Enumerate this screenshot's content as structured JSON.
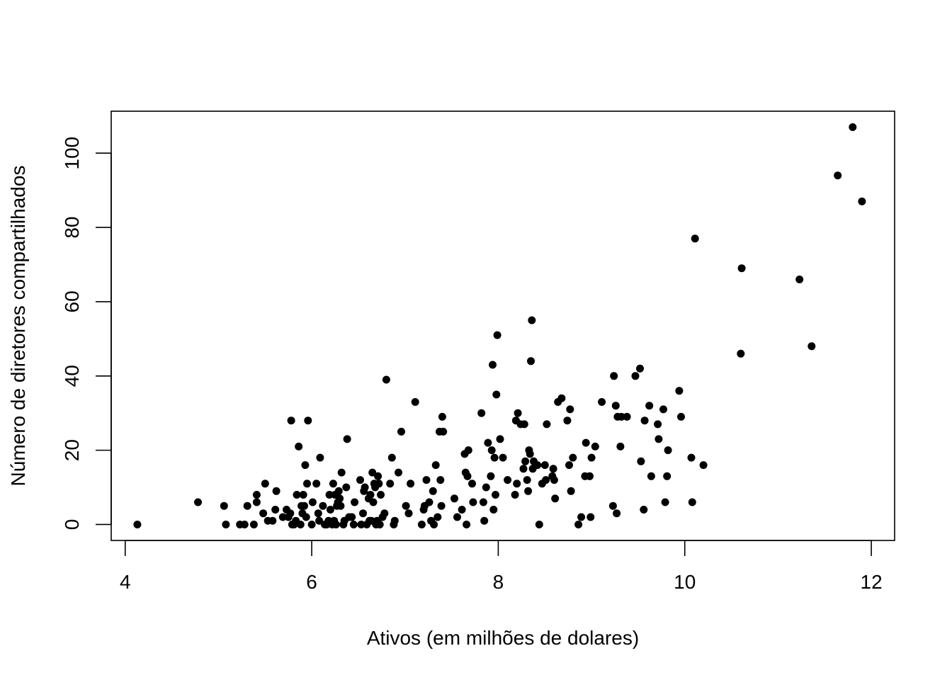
{
  "chart_data": {
    "type": "scatter",
    "title": "",
    "xlabel": "Ativos (em milhões de dolares)",
    "ylabel": "Número de diretores compartilhados",
    "xlim": [
      3.85,
      12.25
    ],
    "ylim": [
      -4.3,
      111.3
    ],
    "x_ticks": [
      4,
      6,
      8,
      10,
      12
    ],
    "y_ticks": [
      0,
      20,
      40,
      60,
      80,
      100
    ],
    "grid": false,
    "legend": "none",
    "point_color": "#000000",
    "points": [
      [
        4.13,
        0
      ],
      [
        4.78,
        6
      ],
      [
        5.06,
        5
      ],
      [
        5.08,
        0
      ],
      [
        5.23,
        0
      ],
      [
        5.28,
        0
      ],
      [
        5.31,
        5
      ],
      [
        5.38,
        0
      ],
      [
        5.41,
        6
      ],
      [
        5.41,
        8
      ],
      [
        5.48,
        3
      ],
      [
        5.5,
        11
      ],
      [
        5.53,
        1
      ],
      [
        5.58,
        1
      ],
      [
        5.61,
        4
      ],
      [
        5.62,
        9
      ],
      [
        5.69,
        2
      ],
      [
        5.73,
        4
      ],
      [
        5.75,
        2
      ],
      [
        5.77,
        3
      ],
      [
        5.78,
        28
      ],
      [
        5.79,
        0
      ],
      [
        5.81,
        0
      ],
      [
        5.83,
        1
      ],
      [
        5.84,
        8
      ],
      [
        5.86,
        21
      ],
      [
        5.88,
        0
      ],
      [
        5.89,
        5
      ],
      [
        5.9,
        3
      ],
      [
        5.91,
        8
      ],
      [
        5.92,
        5
      ],
      [
        5.93,
        16
      ],
      [
        5.94,
        2
      ],
      [
        5.95,
        11
      ],
      [
        5.96,
        28
      ],
      [
        6.0,
        0
      ],
      [
        6.01,
        6
      ],
      [
        6.05,
        11
      ],
      [
        6.07,
        3
      ],
      [
        6.08,
        1
      ],
      [
        6.09,
        18
      ],
      [
        6.12,
        5
      ],
      [
        6.14,
        0
      ],
      [
        6.16,
        0
      ],
      [
        6.18,
        1
      ],
      [
        6.19,
        8
      ],
      [
        6.2,
        4
      ],
      [
        6.22,
        0
      ],
      [
        6.23,
        11
      ],
      [
        6.24,
        1
      ],
      [
        6.25,
        8
      ],
      [
        6.26,
        0
      ],
      [
        6.27,
        5
      ],
      [
        6.28,
        6
      ],
      [
        6.29,
        9
      ],
      [
        6.3,
        7
      ],
      [
        6.31,
        5
      ],
      [
        6.32,
        14
      ],
      [
        6.34,
        0
      ],
      [
        6.35,
        1
      ],
      [
        6.37,
        10
      ],
      [
        6.38,
        23
      ],
      [
        6.4,
        2
      ],
      [
        6.43,
        2
      ],
      [
        6.45,
        0
      ],
      [
        6.46,
        6
      ],
      [
        6.52,
        12
      ],
      [
        6.53,
        0
      ],
      [
        6.55,
        3
      ],
      [
        6.56,
        9
      ],
      [
        6.57,
        10
      ],
      [
        6.59,
        0
      ],
      [
        6.61,
        7
      ],
      [
        6.62,
        1
      ],
      [
        6.63,
        8
      ],
      [
        6.64,
        1
      ],
      [
        6.65,
        14
      ],
      [
        6.66,
        6
      ],
      [
        6.67,
        11
      ],
      [
        6.68,
        10
      ],
      [
        6.69,
        0
      ],
      [
        6.7,
        1
      ],
      [
        6.71,
        13
      ],
      [
        6.72,
        11
      ],
      [
        6.73,
        0
      ],
      [
        6.74,
        8
      ],
      [
        6.76,
        2
      ],
      [
        6.78,
        3
      ],
      [
        6.8,
        39
      ],
      [
        6.84,
        11
      ],
      [
        6.86,
        18
      ],
      [
        6.88,
        0
      ],
      [
        6.89,
        1
      ],
      [
        6.93,
        14
      ],
      [
        6.96,
        25
      ],
      [
        7.01,
        5
      ],
      [
        7.04,
        3
      ],
      [
        7.06,
        11
      ],
      [
        7.11,
        33
      ],
      [
        7.18,
        0
      ],
      [
        7.2,
        4
      ],
      [
        7.21,
        5
      ],
      [
        7.23,
        12
      ],
      [
        7.26,
        6
      ],
      [
        7.28,
        1
      ],
      [
        7.3,
        9
      ],
      [
        7.31,
        0
      ],
      [
        7.33,
        16
      ],
      [
        7.35,
        2
      ],
      [
        7.37,
        25
      ],
      [
        7.38,
        12
      ],
      [
        7.39,
        5
      ],
      [
        7.4,
        29
      ],
      [
        7.41,
        25
      ],
      [
        7.53,
        7
      ],
      [
        7.56,
        2
      ],
      [
        7.61,
        4
      ],
      [
        7.64,
        19
      ],
      [
        7.65,
        14
      ],
      [
        7.66,
        0
      ],
      [
        7.67,
        13
      ],
      [
        7.68,
        20
      ],
      [
        7.72,
        11
      ],
      [
        7.73,
        6
      ],
      [
        7.82,
        30
      ],
      [
        7.84,
        6
      ],
      [
        7.85,
        1
      ],
      [
        7.87,
        10
      ],
      [
        7.89,
        22
      ],
      [
        7.92,
        13
      ],
      [
        7.93,
        20
      ],
      [
        7.94,
        43
      ],
      [
        7.95,
        4
      ],
      [
        7.96,
        18
      ],
      [
        7.97,
        8
      ],
      [
        7.98,
        35
      ],
      [
        7.99,
        51
      ],
      [
        8.02,
        23
      ],
      [
        8.05,
        18
      ],
      [
        8.1,
        12
      ],
      [
        8.18,
        8
      ],
      [
        8.19,
        28
      ],
      [
        8.2,
        11
      ],
      [
        8.21,
        30
      ],
      [
        8.24,
        27
      ],
      [
        8.27,
        15
      ],
      [
        8.28,
        27
      ],
      [
        8.29,
        17
      ],
      [
        8.31,
        12
      ],
      [
        8.32,
        9
      ],
      [
        8.33,
        20
      ],
      [
        8.34,
        19
      ],
      [
        8.35,
        44
      ],
      [
        8.36,
        55
      ],
      [
        8.37,
        15
      ],
      [
        8.38,
        17
      ],
      [
        8.42,
        16
      ],
      [
        8.44,
        0
      ],
      [
        8.47,
        11
      ],
      [
        8.5,
        16
      ],
      [
        8.51,
        12
      ],
      [
        8.52,
        27
      ],
      [
        8.58,
        13
      ],
      [
        8.59,
        15
      ],
      [
        8.6,
        12
      ],
      [
        8.61,
        7
      ],
      [
        8.64,
        33
      ],
      [
        8.68,
        34
      ],
      [
        8.74,
        28
      ],
      [
        8.76,
        16
      ],
      [
        8.77,
        31
      ],
      [
        8.78,
        9
      ],
      [
        8.8,
        18
      ],
      [
        8.86,
        0
      ],
      [
        8.89,
        2
      ],
      [
        8.93,
        13
      ],
      [
        8.94,
        22
      ],
      [
        8.98,
        13
      ],
      [
        8.99,
        2
      ],
      [
        9.0,
        18
      ],
      [
        9.04,
        21
      ],
      [
        9.11,
        33
      ],
      [
        9.23,
        5
      ],
      [
        9.24,
        40
      ],
      [
        9.26,
        32
      ],
      [
        9.27,
        3
      ],
      [
        9.28,
        29
      ],
      [
        9.31,
        21
      ],
      [
        9.32,
        29
      ],
      [
        9.38,
        29
      ],
      [
        9.47,
        40
      ],
      [
        9.52,
        42
      ],
      [
        9.53,
        17
      ],
      [
        9.56,
        4
      ],
      [
        9.57,
        28
      ],
      [
        9.62,
        32
      ],
      [
        9.64,
        13
      ],
      [
        9.71,
        27
      ],
      [
        9.72,
        23
      ],
      [
        9.77,
        31
      ],
      [
        9.79,
        6
      ],
      [
        9.81,
        13
      ],
      [
        9.82,
        20
      ],
      [
        9.94,
        36
      ],
      [
        9.96,
        29
      ],
      [
        10.07,
        18
      ],
      [
        10.08,
        6
      ],
      [
        10.11,
        77
      ],
      [
        10.2,
        16
      ],
      [
        10.6,
        46
      ],
      [
        10.61,
        69
      ],
      [
        11.23,
        66
      ],
      [
        11.36,
        48
      ],
      [
        11.64,
        94
      ],
      [
        11.8,
        107
      ],
      [
        11.9,
        87
      ]
    ]
  }
}
